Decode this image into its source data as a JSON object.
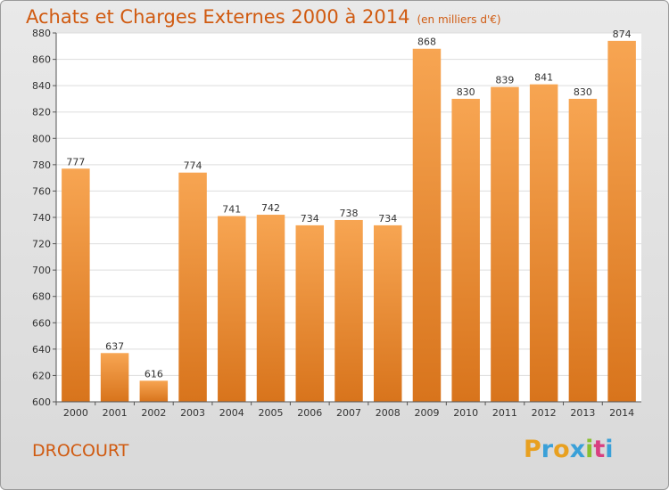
{
  "header": {
    "title": "Achats et Charges Externes 2000 à 2014",
    "units": "(en milliers d'€)"
  },
  "footer": {
    "commune": "DROCOURT"
  },
  "logo": {
    "letters": [
      "P",
      "r",
      "o",
      "x",
      "i",
      "t",
      "i"
    ],
    "colors": [
      "#e8a020",
      "#3aa0d8",
      "#e8a020",
      "#3aa0d8",
      "#8ac030",
      "#d84080",
      "#3aa0d8"
    ]
  },
  "chart_data": {
    "type": "bar",
    "categories": [
      "2000",
      "2001",
      "2002",
      "2003",
      "2004",
      "2005",
      "2006",
      "2007",
      "2008",
      "2009",
      "2010",
      "2011",
      "2012",
      "2013",
      "2014"
    ],
    "values": [
      777,
      637,
      616,
      774,
      741,
      742,
      734,
      738,
      734,
      868,
      830,
      839,
      841,
      830,
      874
    ],
    "title": "Achats et Charges Externes 2000 à 2014",
    "ylim": [
      600,
      880
    ],
    "yticks": [
      600,
      620,
      640,
      660,
      680,
      700,
      720,
      740,
      760,
      780,
      800,
      820,
      840,
      860,
      880
    ],
    "grid": true,
    "bar_color_top": "#f7a552",
    "bar_color_bottom": "#d8741c"
  }
}
